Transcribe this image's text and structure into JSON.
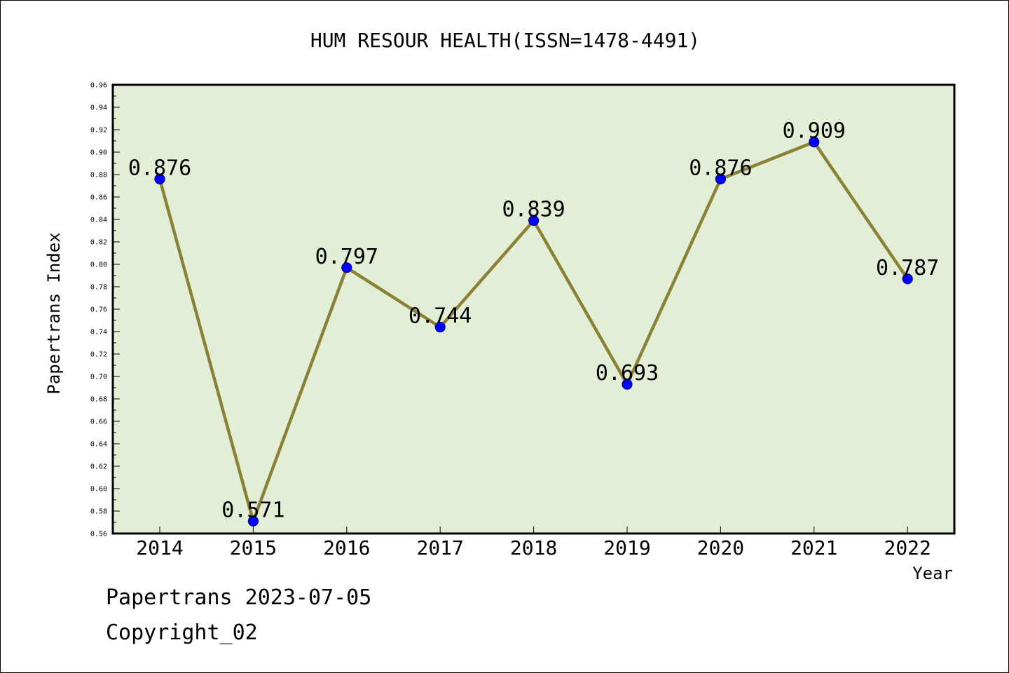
{
  "chart_data": {
    "type": "line",
    "title": "HUM RESOUR HEALTH(ISSN=1478-4491)",
    "xlabel": "Year",
    "ylabel": "Papertrans Index",
    "categories": [
      "2014",
      "2015",
      "2016",
      "2017",
      "2018",
      "2019",
      "2020",
      "2021",
      "2022"
    ],
    "series": [
      {
        "values": [
          0.876,
          0.571,
          0.797,
          0.744,
          0.839,
          0.693,
          0.876,
          0.909,
          0.787
        ]
      }
    ],
    "data_labels": [
      "0.876",
      "0.571",
      "0.797",
      "0.744",
      "0.839",
      "0.693",
      "0.876",
      "0.909",
      "0.787"
    ],
    "ylim": [
      0.56,
      0.96
    ],
    "yticks": [
      "0.56",
      "0.58",
      "0.60",
      "0.62",
      "0.64",
      "0.66",
      "0.68",
      "0.70",
      "0.72",
      "0.74",
      "0.76",
      "0.78",
      "0.80",
      "0.82",
      "0.84",
      "0.86",
      "0.88",
      "0.90",
      "0.92",
      "0.94",
      "0.96"
    ],
    "grid": false,
    "legend": "none",
    "colors": {
      "plot_background": "#e2efd6",
      "line": "#8b8136",
      "marker": "#0000ff",
      "marker_edge": "#00008b"
    }
  },
  "footer": {
    "line1": "Papertrans 2023-07-05",
    "line2": "Copyright_02"
  }
}
